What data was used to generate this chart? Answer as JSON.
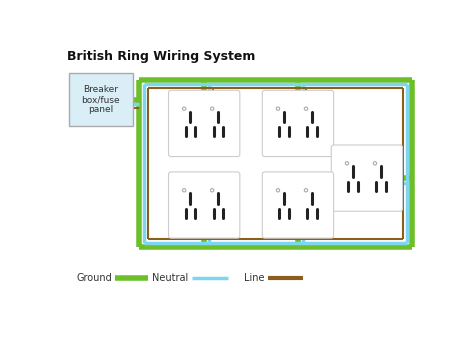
{
  "title": "British Ring Wiring System",
  "title_fontsize": 9,
  "title_fontweight": "bold",
  "background_color": "#ffffff",
  "ground_color": "#6dbf2a",
  "neutral_color": "#7dd6f0",
  "line_color": "#8b5e1a",
  "breaker_label": "Breaker\nbox/fuse\npanel",
  "breaker_facecolor": "#daeef7",
  "breaker_edgecolor": "#aaaaaa",
  "legend_items": [
    {
      "label": "Ground",
      "color": "#6dbf2a"
    },
    {
      "label": "Neutral",
      "color": "#7dd6f0"
    },
    {
      "label": "Line",
      "color": "#8b5e1a"
    }
  ]
}
